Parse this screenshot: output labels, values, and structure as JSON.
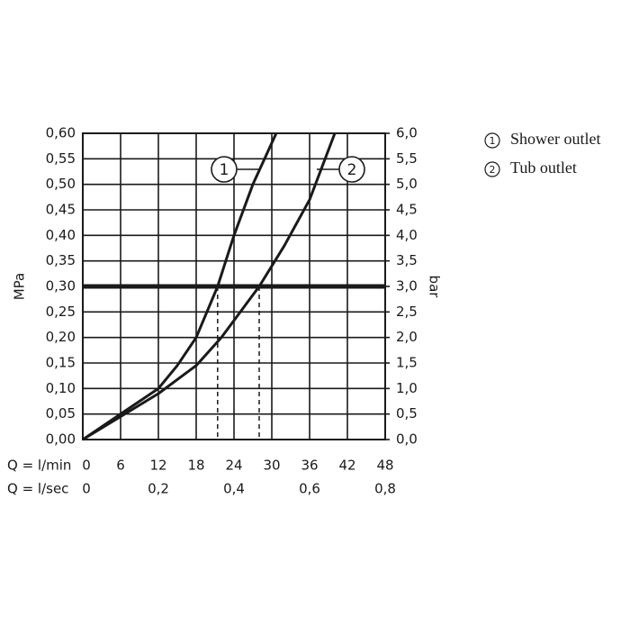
{
  "chart_data": {
    "type": "line",
    "xlabel": "Q = l/min",
    "x2label": "Q = l/sec",
    "ylabel": "MPa",
    "y2label": "bar",
    "xlim": [
      0,
      48
    ],
    "xticks": [
      0,
      6,
      12,
      18,
      24,
      30,
      36,
      42,
      48
    ],
    "x2lim": [
      0,
      0.8
    ],
    "x2ticks": [
      0,
      {
        "value": 0.2,
        "label": "0,2"
      },
      {
        "value": 0.4,
        "label": "0,4"
      },
      {
        "value": 0.6,
        "label": "0,6"
      },
      {
        "value": 0.8,
        "label": "0,8"
      }
    ],
    "ylim": [
      0,
      0.6
    ],
    "yticks": [
      {
        "value": 0,
        "label": "0,00"
      },
      {
        "value": 0.05,
        "label": "0,05"
      },
      {
        "value": 0.1,
        "label": "0,10"
      },
      {
        "value": 0.15,
        "label": "0,15"
      },
      {
        "value": 0.2,
        "label": "0,20"
      },
      {
        "value": 0.25,
        "label": "0,25"
      },
      {
        "value": 0.3,
        "label": "0,30"
      },
      {
        "value": 0.35,
        "label": "0,35"
      },
      {
        "value": 0.4,
        "label": "0,40"
      },
      {
        "value": 0.45,
        "label": "0,45"
      },
      {
        "value": 0.5,
        "label": "0,50"
      },
      {
        "value": 0.55,
        "label": "0,55"
      },
      {
        "value": 0.6,
        "label": "0,60"
      }
    ],
    "y2lim": [
      0,
      6
    ],
    "y2ticks": [
      {
        "value": 0,
        "label": "0,0"
      },
      {
        "value": 0.5,
        "label": "0,5"
      },
      {
        "value": 1,
        "label": "1,0"
      },
      {
        "value": 1.5,
        "label": "1,5"
      },
      {
        "value": 2,
        "label": "2,0"
      },
      {
        "value": 2.5,
        "label": "2,5"
      },
      {
        "value": 3,
        "label": "3,0"
      },
      {
        "value": 3.5,
        "label": "3,5"
      },
      {
        "value": 4,
        "label": "4,0"
      },
      {
        "value": 4.5,
        "label": "4,5"
      },
      {
        "value": 5,
        "label": "5,0"
      },
      {
        "value": 5.5,
        "label": "5,5"
      },
      {
        "value": 6,
        "label": "6,0"
      }
    ],
    "grid": true,
    "reference_value": 0.3,
    "color": "#1a1a1a",
    "series": [
      {
        "name": "Shower outlet",
        "marker": "1",
        "color": "#1a1a1a",
        "x": [
          0,
          6,
          12,
          15,
          18,
          21.4,
          24,
          27,
          30.7
        ],
        "values": [
          0,
          0.05,
          0.1,
          0.145,
          0.2,
          0.3,
          0.4,
          0.5,
          0.6
        ]
      },
      {
        "name": "Tub outlet",
        "marker": "2",
        "color": "#1a1a1a",
        "x": [
          0,
          6,
          12,
          18,
          22,
          28,
          32,
          36,
          40
        ],
        "values": [
          0,
          0.045,
          0.09,
          0.145,
          0.2,
          0.3,
          0.38,
          0.47,
          0.6
        ]
      }
    ]
  }
}
